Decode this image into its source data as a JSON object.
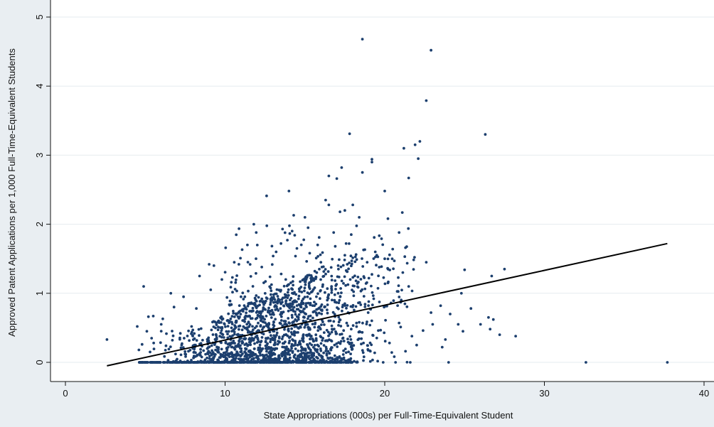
{
  "chart_data": {
    "type": "scatter",
    "title": "",
    "xlabel": "State Appropriations (000s) per Full-Time-Equivalent Student",
    "ylabel": "Approved Patent Applications per 1,000 Full-Time-Equivalent Students",
    "xlim": [
      0,
      41
    ],
    "ylim": [
      -0.3,
      5.2
    ],
    "xticks": [
      0,
      10,
      20,
      30,
      40
    ],
    "yticks": [
      0,
      1,
      2,
      3,
      4,
      5
    ],
    "xtick_labels": [
      "0",
      "10",
      "20",
      "30",
      "40"
    ],
    "ytick_labels": [
      "0",
      "1",
      "2",
      "3",
      "4",
      "5"
    ],
    "grid": "horizontal",
    "legend": "none",
    "point_color": "#1c3f6e",
    "background_color": "#e9eef2",
    "plot_background_color": "#ffffff",
    "fit_line": {
      "color": "#000000",
      "x": [
        2.6,
        37.7
      ],
      "y": [
        -0.05,
        1.72
      ]
    },
    "series": [
      {
        "points": [
          [
            18.6,
            4.68
          ],
          [
            22.9,
            4.52
          ],
          [
            22.6,
            3.79
          ],
          [
            17.8,
            3.31
          ],
          [
            26.3,
            3.3
          ],
          [
            22.2,
            3.2
          ],
          [
            21.9,
            3.15
          ],
          [
            21.2,
            3.1
          ],
          [
            22.1,
            2.95
          ],
          [
            19.2,
            2.94
          ],
          [
            19.2,
            2.9
          ],
          [
            17.3,
            2.82
          ],
          [
            18.6,
            2.75
          ],
          [
            16.5,
            2.7
          ],
          [
            21.5,
            2.67
          ],
          [
            17.0,
            2.66
          ],
          [
            14.0,
            2.48
          ],
          [
            20.0,
            2.48
          ],
          [
            12.6,
            2.41
          ],
          [
            16.3,
            2.35
          ],
          [
            16.5,
            2.28
          ],
          [
            18.0,
            2.28
          ],
          [
            17.5,
            2.2
          ],
          [
            17.2,
            2.18
          ],
          [
            21.1,
            2.17
          ],
          [
            14.3,
            2.13
          ],
          [
            15.0,
            2.1
          ],
          [
            18.4,
            2.1
          ],
          [
            20.2,
            2.08
          ],
          [
            11.8,
            2.0
          ],
          [
            15.2,
            1.95
          ],
          [
            13.6,
            1.93
          ],
          [
            14.2,
            1.9
          ],
          [
            16.8,
            1.88
          ],
          [
            20.9,
            1.88
          ],
          [
            17.9,
            1.85
          ],
          [
            13.9,
            1.77
          ],
          [
            19.8,
            1.79
          ],
          [
            13.5,
            1.72
          ],
          [
            15.8,
            1.7
          ],
          [
            11.4,
            1.7
          ],
          [
            16.9,
            1.68
          ],
          [
            21.3,
            1.66
          ],
          [
            14.5,
            1.65
          ],
          [
            20.5,
            1.64
          ],
          [
            13.2,
            1.6
          ],
          [
            15.3,
            1.58
          ],
          [
            17.5,
            1.55
          ],
          [
            19.5,
            1.55
          ],
          [
            20.0,
            1.5
          ],
          [
            20.6,
            1.47
          ],
          [
            18.9,
            1.45
          ],
          [
            16.0,
            1.45
          ],
          [
            22.6,
            1.45
          ],
          [
            9.0,
            1.42
          ],
          [
            9.3,
            1.4
          ],
          [
            12.3,
            1.38
          ],
          [
            15.9,
            1.35
          ],
          [
            17.1,
            1.35
          ],
          [
            25.0,
            1.34
          ],
          [
            27.5,
            1.35
          ],
          [
            26.7,
            1.25
          ],
          [
            8.4,
            1.25
          ],
          [
            9.8,
            1.2
          ],
          [
            13.8,
            1.2
          ],
          [
            18.2,
            1.18
          ],
          [
            20.2,
            1.15
          ],
          [
            21.5,
            1.1
          ],
          [
            4.9,
            1.1
          ],
          [
            9.1,
            1.05
          ],
          [
            24.8,
            1.0
          ],
          [
            6.6,
            1.0
          ],
          [
            7.4,
            0.95
          ],
          [
            11.0,
            0.95
          ],
          [
            14.6,
            0.92
          ],
          [
            16.4,
            0.9
          ],
          [
            19.0,
            0.88
          ],
          [
            21.0,
            0.87
          ],
          [
            23.5,
            0.82
          ],
          [
            25.4,
            0.78
          ],
          [
            6.8,
            0.8
          ],
          [
            8.2,
            0.78
          ],
          [
            12.7,
            0.75
          ],
          [
            15.6,
            0.74
          ],
          [
            17.7,
            0.72
          ],
          [
            22.9,
            0.72
          ],
          [
            24.1,
            0.7
          ],
          [
            26.5,
            0.65
          ],
          [
            26.8,
            0.62
          ],
          [
            5.5,
            0.67
          ],
          [
            5.2,
            0.66
          ],
          [
            6.1,
            0.63
          ],
          [
            9.6,
            0.6
          ],
          [
            14.9,
            0.6
          ],
          [
            18.4,
            0.58
          ],
          [
            20.9,
            0.57
          ],
          [
            23.0,
            0.55
          ],
          [
            24.6,
            0.55
          ],
          [
            26.0,
            0.55
          ],
          [
            4.5,
            0.52
          ],
          [
            6.0,
            0.55
          ],
          [
            7.9,
            0.52
          ],
          [
            10.4,
            0.5
          ],
          [
            13.0,
            0.48
          ],
          [
            16.7,
            0.48
          ],
          [
            19.6,
            0.46
          ],
          [
            22.4,
            0.46
          ],
          [
            24.9,
            0.45
          ],
          [
            26.6,
            0.48
          ],
          [
            27.2,
            0.4
          ],
          [
            28.2,
            0.38
          ],
          [
            5.1,
            0.45
          ],
          [
            7.2,
            0.42
          ],
          [
            11.6,
            0.42
          ],
          [
            13.8,
            0.4
          ],
          [
            15.4,
            0.38
          ],
          [
            21.7,
            0.38
          ],
          [
            23.8,
            0.33
          ],
          [
            2.6,
            0.33
          ],
          [
            5.4,
            0.35
          ],
          [
            6.7,
            0.32
          ],
          [
            8.9,
            0.3
          ],
          [
            12.1,
            0.3
          ],
          [
            14.4,
            0.28
          ],
          [
            17.8,
            0.28
          ],
          [
            20.3,
            0.28
          ],
          [
            22.0,
            0.25
          ],
          [
            23.6,
            0.22
          ],
          [
            4.8,
            0.26
          ],
          [
            6.3,
            0.24
          ],
          [
            8.1,
            0.22
          ],
          [
            10.1,
            0.2
          ],
          [
            12.8,
            0.2
          ],
          [
            15.7,
            0.18
          ],
          [
            19.1,
            0.16
          ],
          [
            21.3,
            0.16
          ],
          [
            4.6,
            0.18
          ],
          [
            5.3,
            0.15
          ],
          [
            6.9,
            0.12
          ],
          [
            9.3,
            0.12
          ],
          [
            11.3,
            0.1
          ],
          [
            13.4,
            0.1
          ],
          [
            16.1,
            0.08
          ],
          [
            18.7,
            0.08
          ],
          [
            24.0,
            0.0
          ],
          [
            32.6,
            0.0
          ],
          [
            37.7,
            0.0
          ],
          [
            19.9,
            0.0
          ],
          [
            21.6,
            0.0
          ]
        ]
      }
    ]
  }
}
